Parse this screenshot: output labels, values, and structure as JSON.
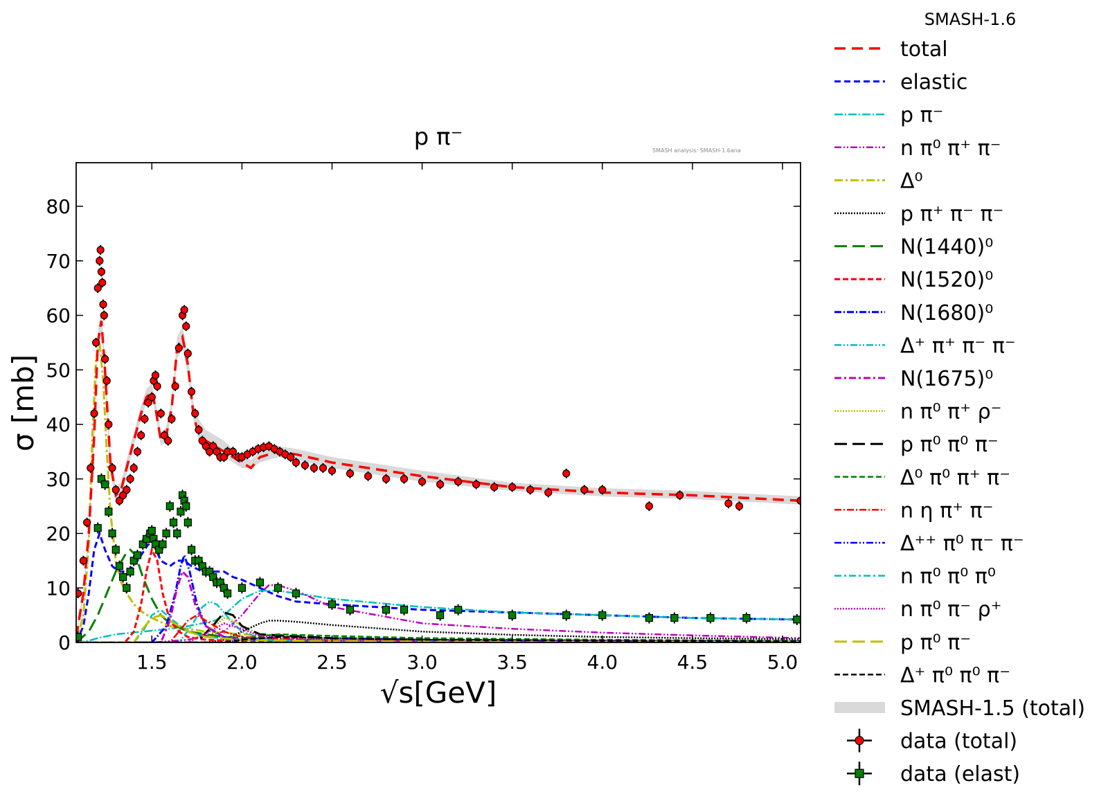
{
  "chart_data": {
    "type": "line",
    "title": "p π⁻",
    "watermark": "SMASH analysis: SMASH-1.6ana",
    "xlabel": "√s[GeV]",
    "ylabel": "σ [mb]",
    "xlim": [
      1.08,
      5.1
    ],
    "ylim": [
      0,
      88
    ],
    "xticks": [
      1.5,
      2.0,
      2.5,
      3.0,
      3.5,
      4.0,
      4.5,
      5.0
    ],
    "xtick_labels": [
      "1.5",
      "2.0",
      "2.5",
      "3.0",
      "3.5",
      "4.0",
      "4.5",
      "5.0"
    ],
    "yticks": [
      0,
      10,
      20,
      30,
      40,
      50,
      60,
      70,
      80
    ],
    "ytick_labels": [
      "0",
      "10",
      "20",
      "30",
      "40",
      "50",
      "60",
      "70",
      "80"
    ],
    "legend_title": "SMASH-1.6",
    "legend_placement": "outside right",
    "series": [
      {
        "name": "total",
        "color": "#ff0000",
        "dash": "16,9",
        "width": 3.5,
        "x": [
          1.08,
          1.12,
          1.15,
          1.18,
          1.2,
          1.22,
          1.24,
          1.27,
          1.3,
          1.33,
          1.36,
          1.4,
          1.44,
          1.47,
          1.5,
          1.52,
          1.55,
          1.58,
          1.61,
          1.64,
          1.67,
          1.7,
          1.73,
          1.76,
          1.8,
          1.85,
          1.9,
          1.95,
          2.0,
          2.05,
          2.1,
          2.2,
          2.3,
          2.5,
          3.0,
          3.5,
          4.0,
          4.5,
          5.1
        ],
        "y": [
          1,
          9,
          20,
          38,
          55,
          59,
          50,
          33,
          27,
          28,
          32,
          37,
          42,
          45,
          46,
          43,
          37,
          38,
          43,
          54,
          56,
          51,
          42,
          38,
          37,
          36,
          35,
          34,
          33,
          32,
          34,
          35,
          34.5,
          33,
          30.5,
          28.5,
          27.5,
          27,
          26
        ]
      },
      {
        "name": "elastic",
        "color": "#0000ff",
        "dash": "9,5",
        "width": 3,
        "x": [
          1.08,
          1.12,
          1.15,
          1.18,
          1.21,
          1.24,
          1.28,
          1.32,
          1.36,
          1.4,
          1.44,
          1.48,
          1.51,
          1.55,
          1.6,
          1.64,
          1.68,
          1.72,
          1.78,
          1.84,
          1.9,
          1.95,
          2.0,
          2.1,
          2.2,
          2.3,
          2.5,
          3.0,
          3.5,
          4.0,
          4.5,
          5.1
        ],
        "y": [
          0,
          3,
          9,
          17,
          20,
          17,
          14,
          13,
          13,
          14,
          16,
          18,
          18,
          15,
          14,
          15,
          15,
          14,
          13,
          13,
          13,
          12,
          11.5,
          10,
          8.5,
          7.5,
          7,
          6,
          5.5,
          5,
          4.5,
          4.2
        ]
      },
      {
        "name": "p π⁻",
        "color": "#00bfbf",
        "dash": "12,3,2,3",
        "width": 2.5,
        "x": [
          1.08,
          1.15,
          1.2,
          1.3,
          1.45,
          1.6,
          1.7,
          1.78,
          1.85,
          1.9,
          1.95,
          2.0,
          2.1,
          2.2,
          2.3,
          2.5,
          3.0,
          3.5,
          4.0,
          4.5,
          5.1
        ],
        "y": [
          0,
          0.3,
          0.8,
          1.5,
          2,
          2.5,
          3,
          3.5,
          4,
          5,
          6.5,
          8,
          9.5,
          9.5,
          9,
          8,
          6.5,
          5.5,
          5,
          4.5,
          4.2
        ]
      },
      {
        "name": "n π⁰ π⁺ π⁻",
        "color": "#bf00bf",
        "dash": "10,3,2,3,2,3",
        "width": 2.5,
        "x": [
          1.08,
          1.5,
          1.7,
          1.9,
          2.0,
          2.1,
          2.15,
          2.2,
          2.3,
          2.5,
          3.0,
          3.5,
          4.0,
          4.5,
          5.1
        ],
        "y": [
          0,
          0,
          0.5,
          2,
          5,
          9,
          10.5,
          10.5,
          9.5,
          6.5,
          3.5,
          2.5,
          1.8,
          1.3,
          0.8
        ]
      },
      {
        "name": "Δ⁰",
        "color": "#bfbf00",
        "dash": "12,4,3,4",
        "width": 3,
        "x": [
          1.08,
          1.12,
          1.15,
          1.17,
          1.19,
          1.21,
          1.23,
          1.25,
          1.27,
          1.3,
          1.33,
          1.36,
          1.4,
          1.45,
          1.5,
          1.6,
          1.8,
          2.0,
          2.5,
          3.0,
          4.0,
          5.1
        ],
        "y": [
          0,
          5,
          18,
          38,
          52,
          55,
          48,
          35,
          24,
          15,
          11,
          9,
          7,
          5.5,
          4.5,
          3,
          2,
          1.5,
          0.8,
          0.5,
          0.3,
          0.2
        ]
      },
      {
        "name": "p π⁺ π⁻ π⁻",
        "color": "#000000",
        "dash": "2,2",
        "width": 2.5,
        "x": [
          1.08,
          1.8,
          1.9,
          2.0,
          2.1,
          2.15,
          2.2,
          2.3,
          2.5,
          3.0,
          3.5,
          4.0,
          4.5,
          5.1
        ],
        "y": [
          0,
          0,
          0.5,
          2,
          3.5,
          4,
          4,
          3.8,
          3.2,
          2,
          1.4,
          1.0,
          0.8,
          0.6
        ]
      },
      {
        "name": "N(1440)⁰",
        "color": "#008000",
        "dash": "18,8",
        "width": 3,
        "x": [
          1.08,
          1.15,
          1.2,
          1.25,
          1.3,
          1.35,
          1.38,
          1.41,
          1.45,
          1.5,
          1.55,
          1.6,
          1.7,
          1.9,
          2.2,
          3.0,
          4.0,
          5.1
        ],
        "y": [
          0,
          2,
          5,
          9,
          13,
          16,
          17,
          16,
          12,
          8,
          5,
          3.5,
          2,
          1,
          0.5,
          0.2,
          0.1,
          0.05
        ]
      },
      {
        "name": "N(1520)⁰",
        "color": "#ff0000",
        "dash": "8,4",
        "width": 3,
        "x": [
          1.08,
          1.35,
          1.4,
          1.44,
          1.47,
          1.5,
          1.53,
          1.56,
          1.6,
          1.65,
          1.7,
          1.8,
          2.0,
          2.5,
          5.1
        ],
        "y": [
          0,
          0,
          2,
          7,
          13,
          17,
          15,
          9,
          4,
          2,
          1,
          0.5,
          0.2,
          0.1,
          0
        ]
      },
      {
        "name": "N(1680)⁰",
        "color": "#0000ff",
        "dash": "10,3,2,3",
        "width": 3,
        "x": [
          1.08,
          1.5,
          1.58,
          1.63,
          1.66,
          1.68,
          1.71,
          1.75,
          1.8,
          1.9,
          2.0,
          2.5,
          5.1
        ],
        "y": [
          0,
          0,
          3,
          9,
          14,
          16,
          13,
          7,
          3,
          1,
          0.5,
          0.1,
          0
        ]
      },
      {
        "name": "Δ⁺ π⁺ π⁻ π⁻",
        "color": "#00bfbf",
        "dash": "10,3,2,3,2,3",
        "width": 2.5,
        "x": [
          1.08,
          1.65,
          1.72,
          1.78,
          1.82,
          1.86,
          1.9,
          1.95,
          2.0,
          2.1,
          2.5,
          5.1
        ],
        "y": [
          0,
          0,
          3,
          6.5,
          7.5,
          7,
          5.5,
          3.5,
          2,
          0.8,
          0.3,
          0.1
        ]
      },
      {
        "name": "N(1675)⁰",
        "color": "#bf00bf",
        "dash": "10,4,3,4",
        "width": 3,
        "x": [
          1.08,
          1.55,
          1.6,
          1.64,
          1.67,
          1.7,
          1.74,
          1.8,
          1.9,
          2.0,
          2.5,
          5.1
        ],
        "y": [
          0,
          0,
          4,
          10,
          13,
          12,
          7,
          3,
          1,
          0.5,
          0.1,
          0
        ]
      },
      {
        "name": "n π⁰ π⁺ ρ⁻",
        "color": "#bfbf00",
        "dash": "2,2",
        "width": 2.5,
        "x": [
          1.08,
          1.7,
          1.85,
          1.9,
          1.95,
          2.0,
          2.1,
          2.5,
          5.1
        ],
        "y": [
          0,
          0,
          3,
          4.5,
          4,
          3,
          1.5,
          0.5,
          0.1
        ]
      },
      {
        "name": "p π⁰ π⁰ π⁻",
        "color": "#000000",
        "dash": "18,8",
        "width": 3,
        "x": [
          1.08,
          1.75,
          1.85,
          1.9,
          1.95,
          2.0,
          2.1,
          2.5,
          3.0,
          4.0,
          5.1
        ],
        "y": [
          0,
          0,
          3.5,
          5.5,
          5,
          3,
          1.5,
          0.8,
          0.5,
          0.3,
          0.2
        ]
      },
      {
        "name": "Δ⁰ π⁰ π⁺ π⁻",
        "color": "#008000",
        "dash": "8,4",
        "width": 2.5,
        "x": [
          1.08,
          1.9,
          2.0,
          2.2,
          2.5,
          3.0,
          4.0,
          5.1
        ],
        "y": [
          0,
          0,
          0.8,
          1.5,
          1.2,
          0.8,
          0.5,
          0.3
        ]
      },
      {
        "name": "n η π⁺ π⁻",
        "color": "#ff0000",
        "dash": "10,3,2,3",
        "width": 2.5,
        "x": [
          1.08,
          1.6,
          1.65,
          1.7,
          1.75,
          1.8,
          1.9,
          2.0,
          2.5,
          5.1
        ],
        "y": [
          0,
          0,
          2,
          4,
          5,
          4,
          2,
          1,
          0.3,
          0.1
        ]
      },
      {
        "name": "Δ⁺⁺ π⁰ π⁻ π⁻",
        "color": "#0000ff",
        "dash": "10,3,2,3,2,3",
        "width": 2.5,
        "x": [
          1.08,
          1.9,
          2.0,
          2.2,
          2.5,
          3.0,
          4.0,
          5.1
        ],
        "y": [
          0,
          0,
          0.5,
          1,
          0.8,
          0.5,
          0.3,
          0.2
        ]
      },
      {
        "name": "n π⁰ π⁰ π⁰",
        "color": "#00bfbf",
        "dash": "10,4,3,4",
        "width": 2.5,
        "x": [
          1.08,
          1.4,
          1.45,
          1.5,
          1.55,
          1.6,
          1.7,
          1.8,
          2.0,
          2.5,
          5.1
        ],
        "y": [
          0,
          0,
          2,
          5,
          6,
          4.5,
          2,
          1,
          0.5,
          0.2,
          0.1
        ]
      },
      {
        "name": "n π⁰ π⁻ ρ⁺",
        "color": "#bf00bf",
        "dash": "2,2",
        "width": 2.5,
        "x": [
          1.08,
          1.7,
          1.85,
          1.9,
          1.95,
          2.0,
          2.1,
          2.5,
          5.1
        ],
        "y": [
          0,
          0,
          2.5,
          3.5,
          3,
          2.5,
          1.2,
          0.4,
          0.1
        ]
      },
      {
        "name": "p π⁰ π⁻",
        "color": "#bfbf00",
        "dash": "18,8",
        "width": 3,
        "x": [
          1.08,
          1.4,
          1.45,
          1.5,
          1.55,
          1.6,
          1.7,
          1.8,
          2.0,
          2.5,
          5.1
        ],
        "y": [
          0,
          0,
          2.5,
          4.5,
          5,
          4,
          2,
          1,
          0.5,
          0.2,
          0.1
        ]
      },
      {
        "name": "Δ⁺ π⁰ π⁰ π⁻",
        "color": "#000000",
        "dash": "8,4",
        "width": 2.5,
        "x": [
          1.08,
          1.9,
          2.0,
          2.2,
          2.5,
          3.0,
          4.0,
          5.1
        ],
        "y": [
          0,
          0,
          0.5,
          1,
          0.8,
          0.5,
          0.3,
          0.2
        ]
      }
    ],
    "band": {
      "name": "SMASH-1.5 (total)",
      "color": "#d9d9d9",
      "x": [
        1.08,
        1.12,
        1.15,
        1.18,
        1.2,
        1.22,
        1.24,
        1.27,
        1.3,
        1.33,
        1.36,
        1.4,
        1.44,
        1.47,
        1.5,
        1.52,
        1.55,
        1.58,
        1.61,
        1.64,
        1.67,
        1.7,
        1.73,
        1.76,
        1.8,
        1.85,
        1.9,
        1.95,
        2.0,
        2.05,
        2.1,
        2.2,
        2.3,
        2.5,
        3.0,
        3.5,
        4.0,
        4.5,
        5.1
      ],
      "y_low": [
        0.5,
        8,
        19,
        36,
        53,
        57,
        48,
        31,
        26,
        27,
        31,
        36,
        41,
        44,
        45,
        42,
        36,
        37,
        42,
        52,
        54,
        49,
        41,
        37,
        36,
        35,
        34,
        33,
        32,
        32,
        33,
        34,
        33.5,
        32,
        29.5,
        27.8,
        26.8,
        26.3,
        25.3
      ],
      "y_high": [
        1.5,
        10,
        21,
        40,
        57,
        61,
        52,
        35,
        28.5,
        29.5,
        33.5,
        38.5,
        43.5,
        46.5,
        47.5,
        44.5,
        38.5,
        39.5,
        44.5,
        56,
        58,
        53,
        44,
        41,
        39,
        38,
        37,
        35.5,
        34,
        33.5,
        35,
        36,
        35.5,
        34,
        31.5,
        29.3,
        28.3,
        27.8,
        26.8
      ]
    },
    "data_total": {
      "name": "data (total)",
      "color": "#ff0000",
      "x": [
        1.09,
        1.12,
        1.14,
        1.16,
        1.18,
        1.19,
        1.2,
        1.21,
        1.215,
        1.22,
        1.225,
        1.23,
        1.235,
        1.24,
        1.25,
        1.26,
        1.28,
        1.3,
        1.32,
        1.34,
        1.36,
        1.38,
        1.4,
        1.42,
        1.44,
        1.46,
        1.48,
        1.5,
        1.51,
        1.52,
        1.53,
        1.55,
        1.57,
        1.59,
        1.61,
        1.63,
        1.65,
        1.67,
        1.68,
        1.69,
        1.7,
        1.72,
        1.74,
        1.76,
        1.78,
        1.8,
        1.82,
        1.84,
        1.86,
        1.88,
        1.9,
        1.92,
        1.95,
        1.98,
        2.0,
        2.03,
        2.06,
        2.09,
        2.12,
        2.15,
        2.18,
        2.21,
        2.24,
        2.27,
        2.3,
        2.35,
        2.4,
        2.45,
        2.5,
        2.6,
        2.7,
        2.8,
        2.9,
        3.0,
        3.1,
        3.2,
        3.3,
        3.4,
        3.5,
        3.6,
        3.7,
        3.8,
        3.9,
        4.0,
        4.26,
        4.43,
        4.7,
        4.76,
        5.1
      ],
      "y": [
        9,
        15,
        22,
        32,
        42,
        55,
        65,
        70,
        72,
        68,
        66,
        62,
        60,
        52,
        48,
        40,
        32,
        28,
        26,
        27,
        28,
        30,
        32,
        35,
        38,
        41,
        44,
        45,
        48,
        49,
        47,
        42,
        38,
        37,
        41,
        47,
        54,
        60,
        61,
        58,
        53,
        46,
        42,
        39,
        37,
        36,
        35,
        36,
        35,
        34,
        34,
        35,
        35,
        34,
        34,
        34.5,
        35,
        35.5,
        35.8,
        36,
        35.5,
        35,
        34.5,
        34,
        33,
        32.5,
        32,
        32,
        31.5,
        31,
        30.5,
        30,
        30,
        29.5,
        29,
        29.5,
        29,
        28.5,
        28.5,
        28,
        27.5,
        31,
        28,
        28,
        25,
        27,
        25.5,
        25,
        26
      ]
    },
    "data_elast": {
      "name": "data (elast)",
      "color": "#008000",
      "x": [
        1.09,
        1.2,
        1.22,
        1.24,
        1.26,
        1.28,
        1.3,
        1.32,
        1.34,
        1.36,
        1.38,
        1.4,
        1.42,
        1.45,
        1.47,
        1.49,
        1.5,
        1.51,
        1.52,
        1.54,
        1.56,
        1.58,
        1.6,
        1.62,
        1.64,
        1.66,
        1.67,
        1.68,
        1.69,
        1.7,
        1.72,
        1.74,
        1.76,
        1.78,
        1.8,
        1.82,
        1.84,
        1.86,
        1.88,
        1.9,
        1.92,
        2.0,
        2.1,
        2.2,
        2.3,
        2.5,
        2.6,
        2.8,
        2.9,
        3.1,
        3.2,
        3.5,
        3.8,
        4.0,
        4.26,
        4.4,
        4.6,
        4.8,
        5.08
      ],
      "y": [
        1,
        21,
        30,
        29,
        24,
        20,
        17,
        14,
        12,
        10,
        13,
        15,
        16,
        18,
        19,
        20,
        20.5,
        19,
        18,
        17,
        18,
        20,
        25,
        22,
        20,
        24,
        27,
        26,
        25,
        22,
        17,
        15,
        15,
        14,
        13,
        13,
        12,
        11,
        11,
        10,
        9,
        10,
        11,
        10,
        9,
        7,
        6,
        6,
        6,
        5,
        6,
        5,
        5,
        5,
        4.5,
        4.5,
        4.5,
        4.5,
        4.2
      ]
    }
  }
}
